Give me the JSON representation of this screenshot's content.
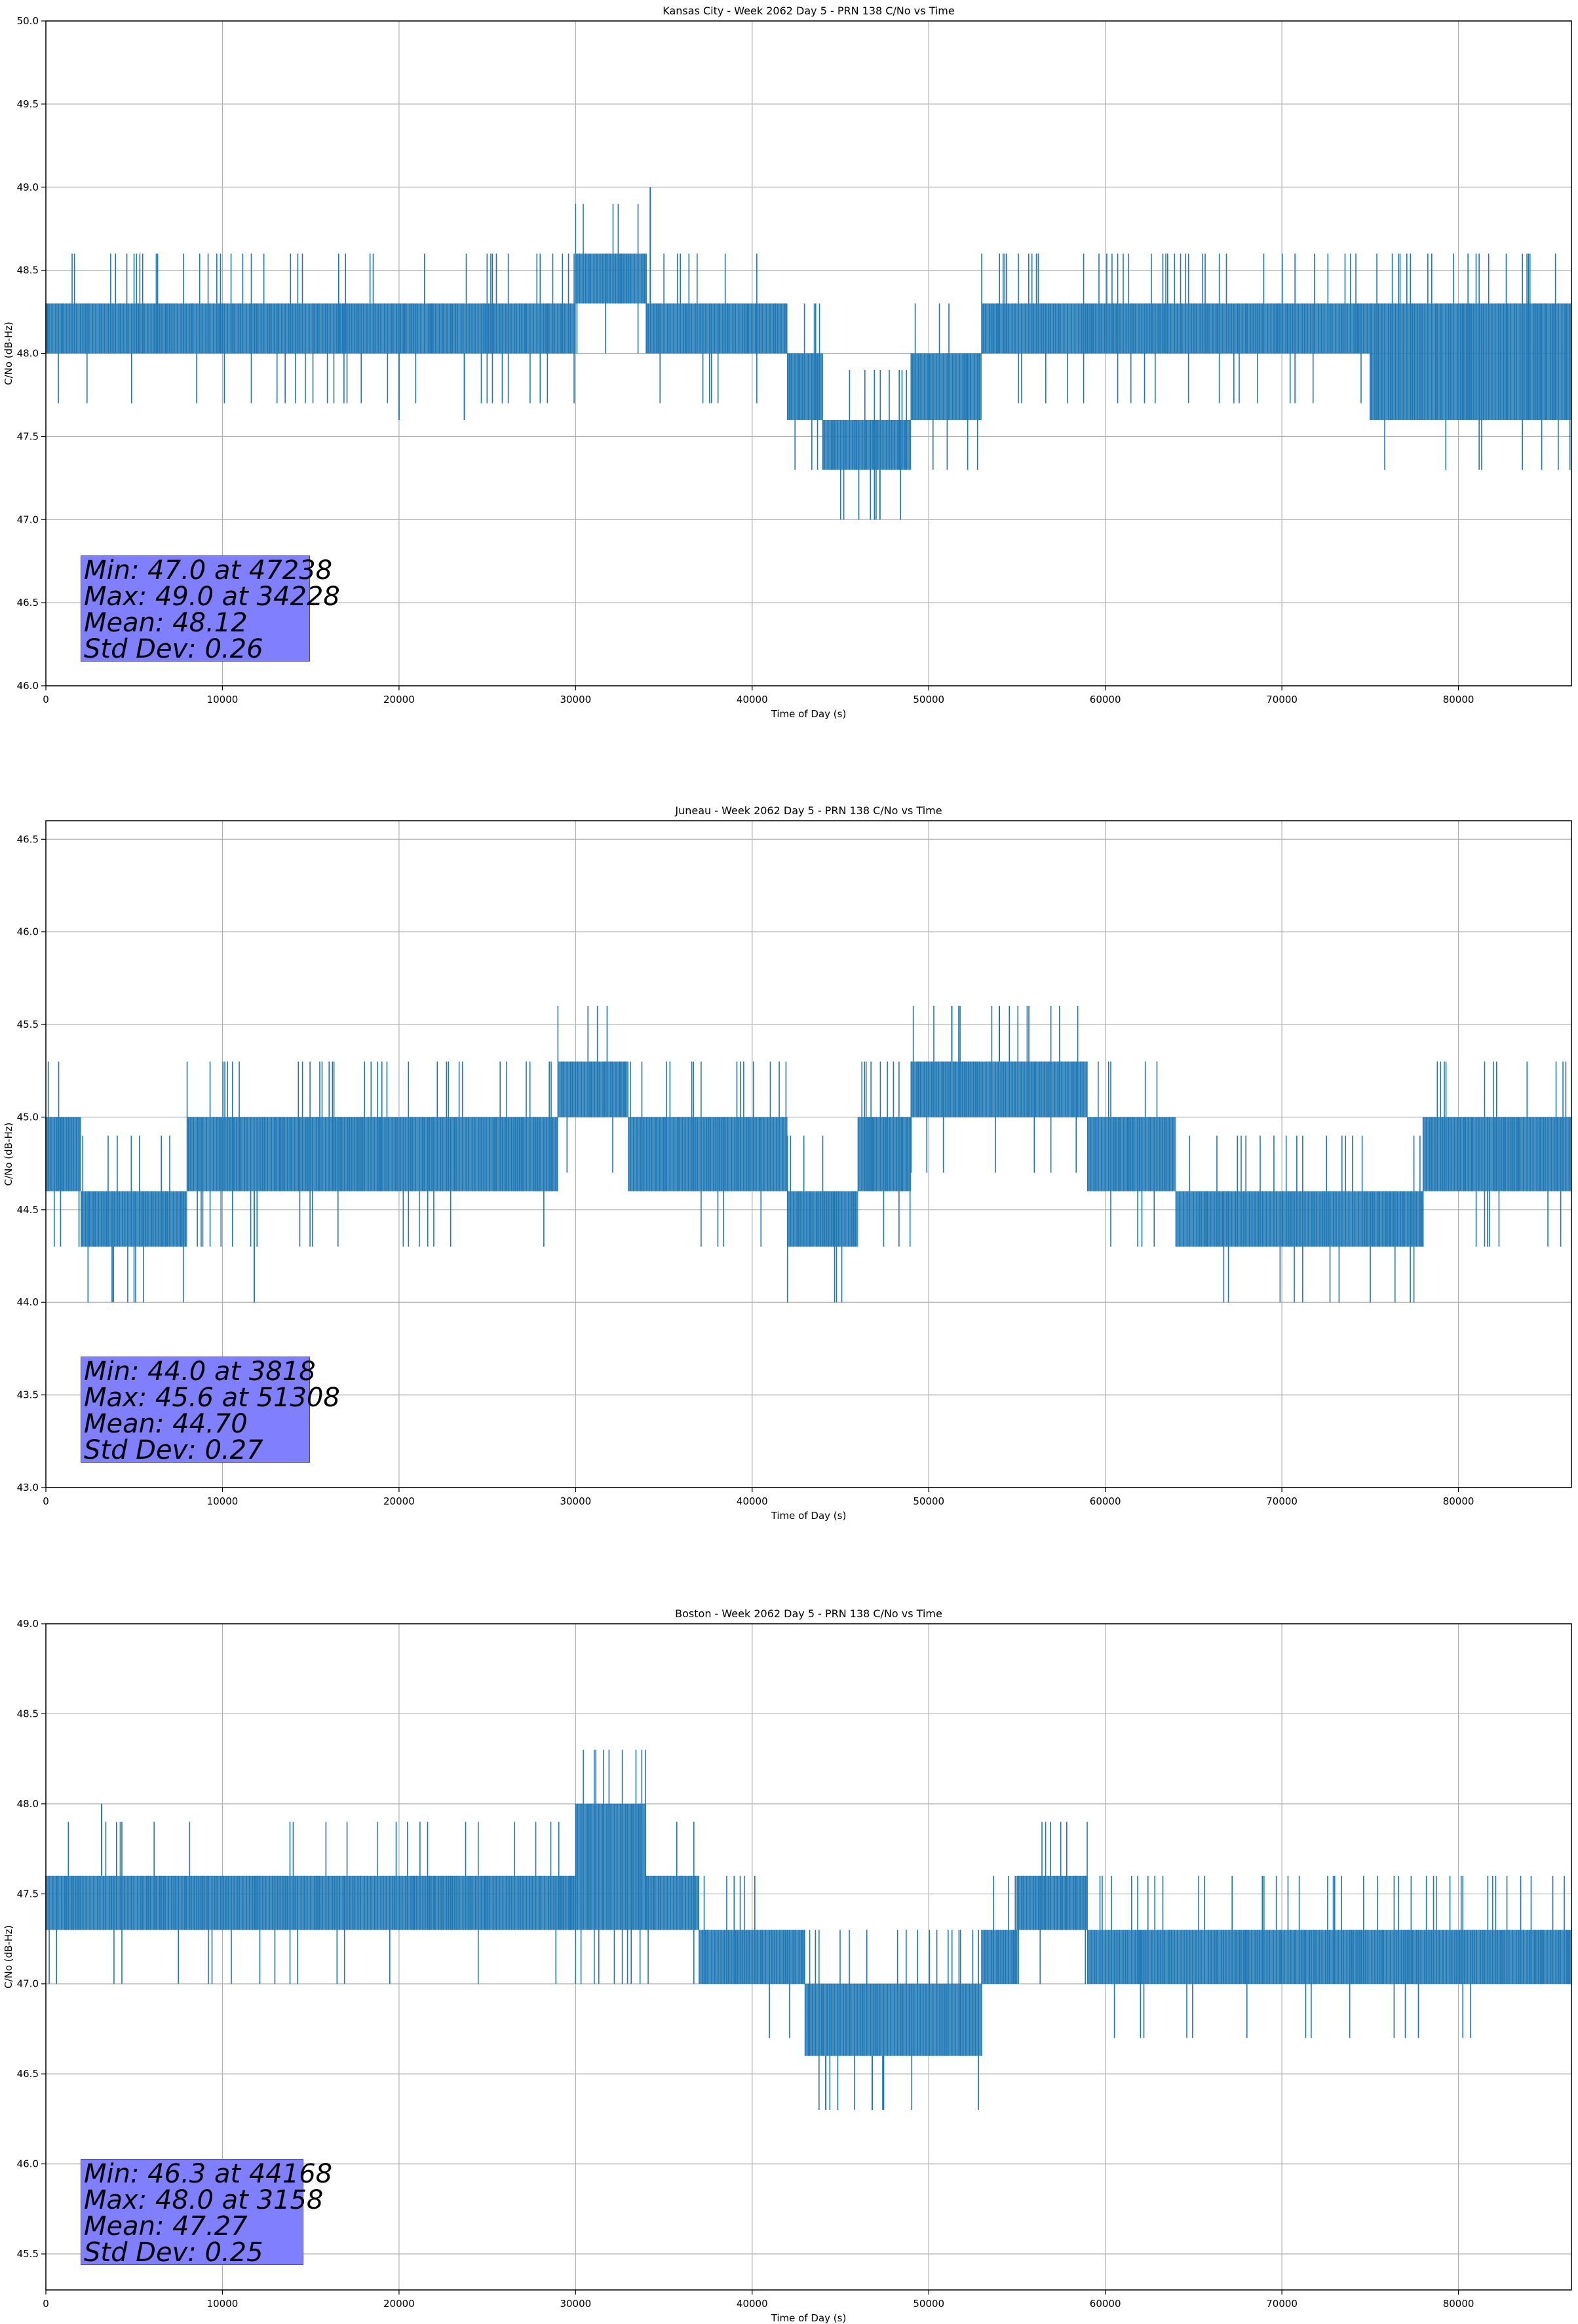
{
  "colors": {
    "series": "#1f77b4",
    "grid": "#b0b0b0",
    "axis": "#000000",
    "stats_box": "#8080ff"
  },
  "chart_data": [
    {
      "type": "line",
      "title": "Kansas City - Week 2062 Day 5 - PRN 138 C/No vs Time",
      "xlabel": "Time of Day (s)",
      "ylabel": "C/No (dB-Hz)",
      "xlim": [
        0,
        86400
      ],
      "ylim": [
        46.0,
        50.0
      ],
      "xticks": [
        0,
        10000,
        20000,
        30000,
        40000,
        50000,
        60000,
        70000,
        80000
      ],
      "yticks": [
        "46.0",
        "46.5",
        "47.0",
        "47.5",
        "48.0",
        "48.5",
        "49.0",
        "49.5",
        "50.0"
      ],
      "grid": true,
      "series": [
        {
          "color": "#1f77b4",
          "bands": [
            {
              "x": [
                0,
                30000
              ],
              "lo": 48.0,
              "hi": 48.3
            },
            {
              "x": [
                30000,
                34000
              ],
              "lo": 48.3,
              "hi": 48.6
            },
            {
              "x": [
                34000,
                42000
              ],
              "lo": 48.0,
              "hi": 48.3
            },
            {
              "x": [
                42000,
                44000
              ],
              "lo": 47.6,
              "hi": 48.0
            },
            {
              "x": [
                44000,
                49000
              ],
              "lo": 47.3,
              "hi": 47.6
            },
            {
              "x": [
                49000,
                53000
              ],
              "lo": 47.6,
              "hi": 48.0
            },
            {
              "x": [
                53000,
                75000
              ],
              "lo": 48.0,
              "hi": 48.3
            },
            {
              "x": [
                75000,
                86400
              ],
              "lo": 47.6,
              "hi": 48.3
            }
          ],
          "extremes": [
            {
              "x": 34228,
              "y": 49.0
            },
            {
              "x": 47238,
              "y": 47.0
            },
            {
              "x": 20000,
              "y": 47.6
            },
            {
              "x": 23700,
              "y": 47.6
            }
          ]
        }
      ],
      "stats": {
        "min": "Min: 47.0 at 47238",
        "max": "Max: 49.0 at 34228",
        "mean": "Mean: 48.12",
        "std": "Std Dev: 0.26"
      }
    },
    {
      "type": "line",
      "title": "Juneau - Week 2062 Day 5 - PRN 138 C/No vs Time",
      "xlabel": "Time of Day (s)",
      "ylabel": "C/No (dB-Hz)",
      "xlim": [
        0,
        86400
      ],
      "ylim": [
        43.0,
        46.6
      ],
      "xticks": [
        0,
        10000,
        20000,
        30000,
        40000,
        50000,
        60000,
        70000,
        80000
      ],
      "yticks": [
        "43.0",
        "43.5",
        "44.0",
        "44.5",
        "45.0",
        "45.5",
        "46.0",
        "46.5"
      ],
      "grid": true,
      "series": [
        {
          "color": "#1f77b4",
          "bands": [
            {
              "x": [
                0,
                2000
              ],
              "lo": 44.6,
              "hi": 45.0
            },
            {
              "x": [
                2000,
                8000
              ],
              "lo": 44.3,
              "hi": 44.6
            },
            {
              "x": [
                8000,
                29000
              ],
              "lo": 44.6,
              "hi": 45.0
            },
            {
              "x": [
                29000,
                33000
              ],
              "lo": 45.0,
              "hi": 45.3
            },
            {
              "x": [
                33000,
                42000
              ],
              "lo": 44.6,
              "hi": 45.0
            },
            {
              "x": [
                42000,
                46000
              ],
              "lo": 44.3,
              "hi": 44.6
            },
            {
              "x": [
                46000,
                49000
              ],
              "lo": 44.6,
              "hi": 45.0
            },
            {
              "x": [
                49000,
                59000
              ],
              "lo": 45.0,
              "hi": 45.3
            },
            {
              "x": [
                59000,
                64000
              ],
              "lo": 44.6,
              "hi": 45.0
            },
            {
              "x": [
                64000,
                78000
              ],
              "lo": 44.3,
              "hi": 44.6
            },
            {
              "x": [
                78000,
                86400
              ],
              "lo": 44.6,
              "hi": 45.0
            }
          ],
          "extremes": [
            {
              "x": 3818,
              "y": 44.0
            },
            {
              "x": 51308,
              "y": 45.6
            },
            {
              "x": 54000,
              "y": 45.6
            },
            {
              "x": 11800,
              "y": 44.0
            }
          ]
        }
      ],
      "stats": {
        "min": "Min: 44.0 at 3818",
        "max": "Max: 45.6 at 51308",
        "mean": "Mean: 44.70",
        "std": "Std Dev: 0.27"
      }
    },
    {
      "type": "line",
      "title": "Boston - Week 2062 Day 5 - PRN 138 C/No vs Time",
      "xlabel": "Time of Day (s)",
      "ylabel": "C/No (dB-Hz)",
      "xlim": [
        0,
        86400
      ],
      "ylim": [
        45.3,
        49.0
      ],
      "xticks": [
        0,
        10000,
        20000,
        30000,
        40000,
        50000,
        60000,
        70000,
        80000
      ],
      "yticks": [
        "45.5",
        "46.0",
        "46.5",
        "47.0",
        "47.5",
        "48.0",
        "48.5",
        "49.0"
      ],
      "grid": true,
      "series": [
        {
          "color": "#1f77b4",
          "bands": [
            {
              "x": [
                0,
                30000
              ],
              "lo": 47.3,
              "hi": 47.6
            },
            {
              "x": [
                30000,
                34000
              ],
              "lo": 47.3,
              "hi": 48.0
            },
            {
              "x": [
                34000,
                37000
              ],
              "lo": 47.3,
              "hi": 47.6
            },
            {
              "x": [
                37000,
                43000
              ],
              "lo": 47.0,
              "hi": 47.3
            },
            {
              "x": [
                43000,
                53000
              ],
              "lo": 46.6,
              "hi": 47.0
            },
            {
              "x": [
                53000,
                55000
              ],
              "lo": 47.0,
              "hi": 47.3
            },
            {
              "x": [
                55000,
                59000
              ],
              "lo": 47.3,
              "hi": 47.6
            },
            {
              "x": [
                59000,
                86400
              ],
              "lo": 47.0,
              "hi": 47.3
            }
          ],
          "extremes": [
            {
              "x": 44168,
              "y": 46.3
            },
            {
              "x": 3158,
              "y": 48.0
            },
            {
              "x": 46800,
              "y": 46.3
            },
            {
              "x": 47400,
              "y": 46.3
            }
          ]
        }
      ],
      "stats": {
        "min": "Min: 46.3 at 44168",
        "max": "Max: 48.0 at 3158",
        "mean": "Mean: 47.27",
        "std": "Std Dev: 0.25"
      }
    }
  ]
}
